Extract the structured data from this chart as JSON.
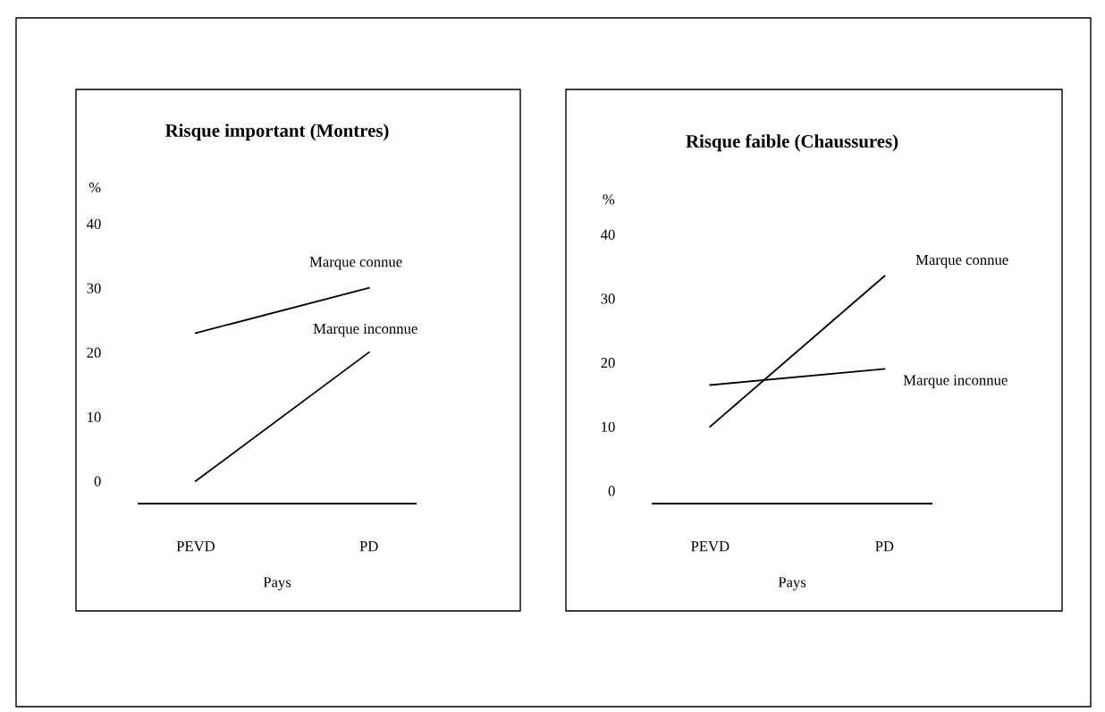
{
  "chart_data": [
    {
      "type": "line",
      "title": "Risque important (Montres)",
      "xlabel": "Pays",
      "ylabel": "%",
      "categories": [
        "PEVD",
        "PD"
      ],
      "ylim": [
        -3.5,
        40
      ],
      "yticks": [
        0,
        10,
        20,
        30,
        40
      ],
      "grid": false,
      "legend": false,
      "marker": "none",
      "line_style": "solid",
      "series": [
        {
          "name": "Marque connue",
          "color": "#000000",
          "values": [
            23,
            30
          ]
        },
        {
          "name": "Marque inconnue",
          "color": "#000000",
          "values": [
            0,
            20
          ]
        }
      ]
    },
    {
      "type": "line",
      "title": "Risque faible (Chaussures)",
      "xlabel": "Pays",
      "ylabel": "%",
      "categories": [
        "PEVD",
        "PD"
      ],
      "ylim": [
        -2,
        40
      ],
      "yticks": [
        0,
        10,
        20,
        30,
        40
      ],
      "grid": false,
      "legend": false,
      "marker": "none",
      "line_style": "solid",
      "series": [
        {
          "name": "Marque connue",
          "color": "#000000",
          "values": [
            10,
            33.5
          ]
        },
        {
          "name": "Marque inconnue",
          "color": "#000000",
          "values": [
            16.5,
            19
          ]
        }
      ]
    }
  ]
}
